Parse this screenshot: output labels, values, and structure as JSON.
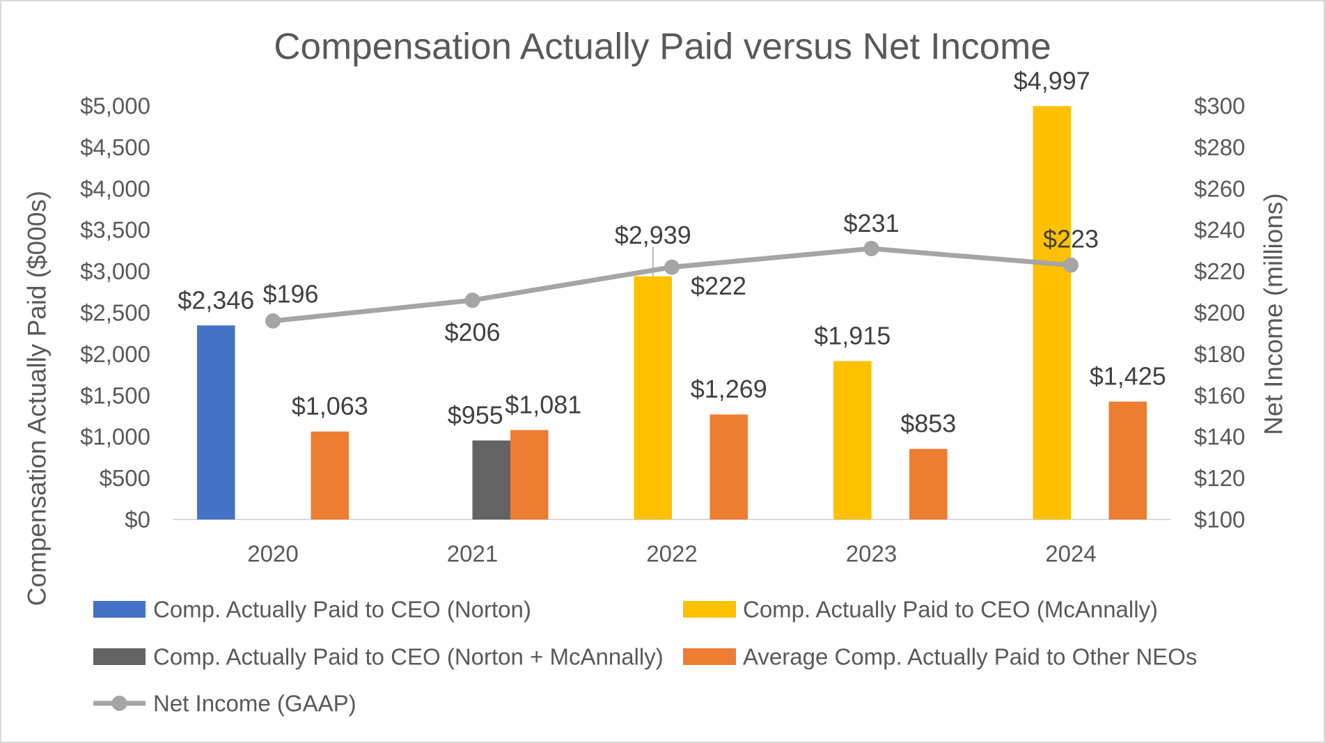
{
  "chart_data": {
    "type": "bar",
    "title": "Compensation Actually Paid versus Net Income",
    "categories": [
      "2020",
      "2021",
      "2022",
      "2023",
      "2024"
    ],
    "y_left": {
      "label": "Compensation Actually Paid ($000s)",
      "lim": [
        0,
        5000
      ],
      "ticks": [
        0,
        500,
        1000,
        1500,
        2000,
        2500,
        3000,
        3500,
        4000,
        4500,
        5000
      ],
      "tick_labels": [
        "$0",
        "$500",
        "$1,000",
        "$1,500",
        "$2,000",
        "$2,500",
        "$3,000",
        "$3,500",
        "$4,000",
        "$4,500",
        "$5,000"
      ]
    },
    "y_right": {
      "label": "Net Income (millions)",
      "lim": [
        100,
        300
      ],
      "ticks": [
        100,
        120,
        140,
        160,
        180,
        200,
        220,
        240,
        260,
        280,
        300
      ],
      "tick_labels": [
        "$100",
        "$120",
        "$140",
        "$160",
        "$180",
        "$200",
        "$220",
        "$240",
        "$260",
        "$280",
        "$300"
      ]
    },
    "series": [
      {
        "name": "Comp. Actually Paid to CEO (Norton)",
        "type": "bar",
        "axis": "left",
        "color": "#4472C4",
        "values": [
          2346,
          null,
          null,
          null,
          null
        ],
        "labels": [
          "$2,346",
          null,
          null,
          null,
          null
        ]
      },
      {
        "name": "Comp. Actually Paid to CEO (McAnnally)",
        "type": "bar",
        "axis": "left",
        "color": "#FFC000",
        "values": [
          null,
          null,
          2939,
          1915,
          4997
        ],
        "labels": [
          null,
          null,
          "$2,939",
          "$1,915",
          "$4,997"
        ]
      },
      {
        "name": "Comp. Actually Paid to CEO (Norton + McAnnally)",
        "type": "bar",
        "axis": "left",
        "color": "#636363",
        "values": [
          null,
          955,
          null,
          null,
          null
        ],
        "labels": [
          null,
          "$955",
          null,
          null,
          null
        ]
      },
      {
        "name": "Average Comp. Actually Paid to Other NEOs",
        "type": "bar",
        "axis": "left",
        "color": "#ED7D31",
        "values": [
          1063,
          1081,
          1269,
          853,
          1425
        ],
        "labels": [
          "$1,063",
          "$1,081",
          "$1,269",
          "$853",
          "$1,425"
        ]
      },
      {
        "name": "Net Income (GAAP)",
        "type": "line",
        "axis": "right",
        "color": "#A5A5A5",
        "values": [
          196,
          206,
          222,
          231,
          223
        ],
        "labels": [
          "$196",
          "$206",
          "$222",
          "$231",
          "$223"
        ]
      }
    ],
    "grid": false,
    "legend": "bottom"
  }
}
